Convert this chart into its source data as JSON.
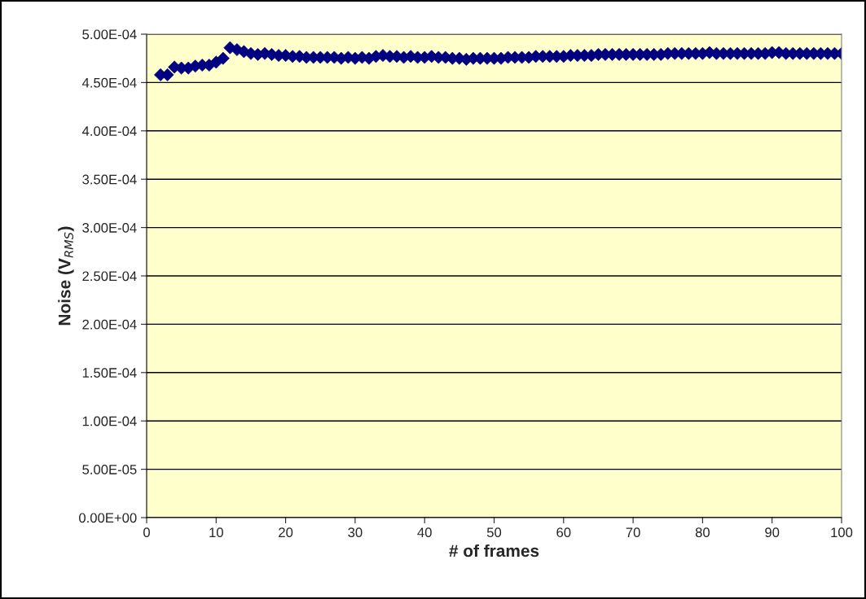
{
  "chart_data": {
    "type": "scatter",
    "xlabel": "# of frames",
    "ylabel": "Noise (V$_{RMS}$)",
    "x": [
      2,
      3,
      4,
      5,
      6,
      7,
      8,
      9,
      10,
      11,
      12,
      13,
      14,
      15,
      16,
      17,
      18,
      19,
      20,
      21,
      22,
      23,
      24,
      25,
      26,
      27,
      28,
      29,
      30,
      31,
      32,
      33,
      34,
      35,
      36,
      37,
      38,
      39,
      40,
      41,
      42,
      43,
      44,
      45,
      46,
      47,
      48,
      49,
      50,
      51,
      52,
      53,
      54,
      55,
      56,
      57,
      58,
      59,
      60,
      61,
      62,
      63,
      64,
      65,
      66,
      67,
      68,
      69,
      70,
      71,
      72,
      73,
      74,
      75,
      76,
      77,
      78,
      79,
      80,
      81,
      82,
      83,
      84,
      85,
      86,
      87,
      88,
      89,
      90,
      91,
      92,
      93,
      94,
      95,
      96,
      97,
      98,
      99,
      100
    ],
    "series": [
      {
        "color": "#000080",
        "values": [
          0.000458,
          0.000458,
          0.000466,
          0.000465,
          0.000465,
          0.000467,
          0.000468,
          0.000468,
          0.000471,
          0.000475,
          0.000486,
          0.000484,
          0.000482,
          0.00048,
          0.000479,
          0.00048,
          0.000479,
          0.000478,
          0.000478,
          0.000477,
          0.000477,
          0.000476,
          0.000476,
          0.000476,
          0.000476,
          0.000476,
          0.000475,
          0.000476,
          0.000475,
          0.000476,
          0.000475,
          0.000477,
          0.000478,
          0.000477,
          0.000477,
          0.000476,
          0.000477,
          0.000476,
          0.000476,
          0.000477,
          0.000476,
          0.000476,
          0.000475,
          0.000475,
          0.000474,
          0.000475,
          0.000475,
          0.000475,
          0.000475,
          0.000475,
          0.000476,
          0.000476,
          0.000476,
          0.000476,
          0.000477,
          0.000477,
          0.000477,
          0.000477,
          0.000477,
          0.000478,
          0.000478,
          0.000478,
          0.000478,
          0.000479,
          0.000479,
          0.000479,
          0.000479,
          0.000479,
          0.000479,
          0.000479,
          0.000479,
          0.000479,
          0.000479,
          0.00048,
          0.00048,
          0.00048,
          0.00048,
          0.00048,
          0.00048,
          0.000481,
          0.00048,
          0.00048,
          0.00048,
          0.00048,
          0.00048,
          0.00048,
          0.00048,
          0.00048,
          0.000481,
          0.000481,
          0.00048,
          0.00048,
          0.00048,
          0.00048,
          0.00048,
          0.00048,
          0.00048,
          0.00048,
          0.00048
        ]
      }
    ],
    "xlim": [
      0,
      100
    ],
    "xticks": [
      0,
      10,
      20,
      30,
      40,
      50,
      60,
      70,
      80,
      90,
      100
    ],
    "ylim": [
      0,
      0.0005
    ],
    "yticks": [
      {
        "value": 0,
        "label": "0.00E+00"
      },
      {
        "value": 5e-05,
        "label": "5.00E-05"
      },
      {
        "value": 0.0001,
        "label": "1.00E-04"
      },
      {
        "value": 0.00015,
        "label": "1.50E-04"
      },
      {
        "value": 0.0002,
        "label": "2.00E-04"
      },
      {
        "value": 0.00025,
        "label": "2.50E-04"
      },
      {
        "value": 0.0003,
        "label": "3.00E-04"
      },
      {
        "value": 0.00035,
        "label": "3.50E-04"
      },
      {
        "value": 0.0004,
        "label": "4.00E-04"
      },
      {
        "value": 0.00045,
        "label": "4.50E-04"
      },
      {
        "value": 0.0005,
        "label": "5.00E-04"
      }
    ],
    "grid": "y",
    "marker": "diamond"
  }
}
